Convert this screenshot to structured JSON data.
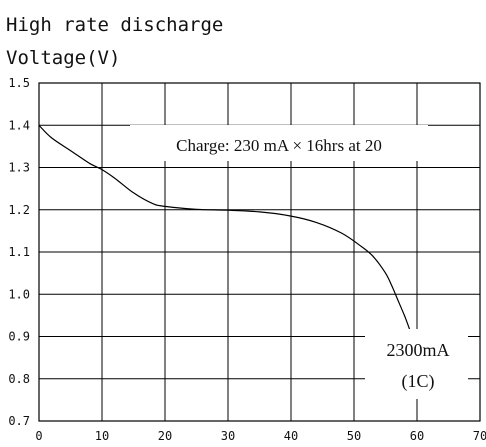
{
  "chart_data": {
    "type": "line",
    "title": "High rate discharge",
    "ylabel": "Voltage(V)",
    "xlabel": "",
    "xlim": [
      0,
      70
    ],
    "ylim": [
      0.7,
      1.5
    ],
    "x_ticks": [
      "0",
      "10",
      "20",
      "30",
      "40",
      "50",
      "60",
      "70"
    ],
    "y_ticks": [
      "0.7",
      "0.8",
      "0.9",
      "1.0",
      "1.1",
      "1.2",
      "1.3",
      "1.4",
      "1.5"
    ],
    "grid": true,
    "annotation": "Charge: 230 mA × 16hrs at 20",
    "curve_label_line1": "2300mA",
    "curve_label_line2": "(1C)",
    "series": [
      {
        "x": [
          0,
          2,
          5,
          8,
          10,
          12,
          15,
          18,
          20,
          25,
          30,
          35,
          40,
          44,
          48,
          51,
          53,
          55,
          56,
          57,
          58,
          58.5,
          59
        ],
        "values": [
          1.4,
          1.37,
          1.34,
          1.31,
          1.295,
          1.275,
          1.24,
          1.215,
          1.208,
          1.201,
          1.199,
          1.195,
          1.185,
          1.17,
          1.145,
          1.115,
          1.09,
          1.05,
          1.02,
          0.985,
          0.95,
          0.93,
          0.91
        ]
      }
    ]
  }
}
